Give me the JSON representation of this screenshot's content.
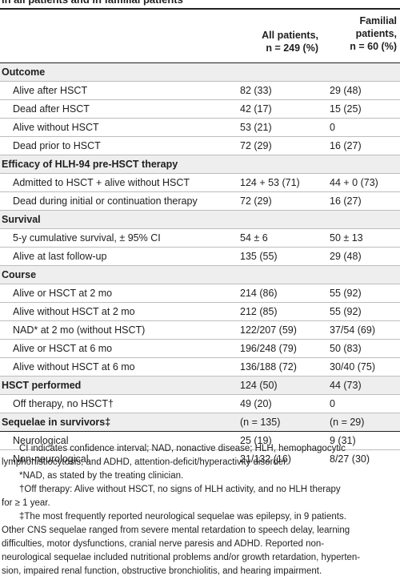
{
  "caption": "in all patients and in familial patients",
  "header": {
    "all_patients": [
      "All patients,",
      "n = 249 (%)"
    ],
    "familial_patients": [
      "Familial",
      "patients,",
      "n = 60 (%)"
    ]
  },
  "rows": [
    {
      "type": "section",
      "label": "Outcome",
      "v1": "",
      "v2": ""
    },
    {
      "type": "item",
      "label": "Alive after HSCT",
      "v1": "82 (33)",
      "v2": "29 (48)"
    },
    {
      "type": "item",
      "label": "Dead after HSCT",
      "v1": "42 (17)",
      "v2": "15 (25)"
    },
    {
      "type": "item",
      "label": "Alive without HSCT",
      "v1": "53 (21)",
      "v2": "0"
    },
    {
      "type": "item",
      "label": "Dead prior to HSCT",
      "v1": "72 (29)",
      "v2": "16 (27)"
    },
    {
      "type": "section",
      "label": "Efficacy of HLH-94 pre-HSCT therapy",
      "v1": "",
      "v2": ""
    },
    {
      "type": "item",
      "label": "Admitted to HSCT + alive without HSCT",
      "v1": "124 + 53 (71)",
      "v2": "44 + 0 (73)"
    },
    {
      "type": "item",
      "label": "Dead during initial or continuation therapy",
      "v1": "72 (29)",
      "v2": "16 (27)"
    },
    {
      "type": "section",
      "label": "Survival",
      "v1": "",
      "v2": ""
    },
    {
      "type": "item",
      "label": "5-y cumulative survival, ± 95% CI",
      "v1": "54 ± 6",
      "v2": "50 ± 13"
    },
    {
      "type": "item",
      "label": "Alive at last follow-up",
      "v1": "135 (55)",
      "v2": "29 (48)"
    },
    {
      "type": "section",
      "label": "Course",
      "v1": "",
      "v2": ""
    },
    {
      "type": "item",
      "label": "Alive or HSCT at 2 mo",
      "v1": "214 (86)",
      "v2": "55 (92)"
    },
    {
      "type": "item",
      "label": "Alive without HSCT at 2 mo",
      "v1": "212 (85)",
      "v2": "55 (92)"
    },
    {
      "type": "item",
      "label": "NAD* at 2 mo (without HSCT)",
      "v1": "122/207 (59)",
      "v2": "37/54 (69)"
    },
    {
      "type": "item",
      "label": "Alive or HSCT at 6 mo",
      "v1": "196/248 (79)",
      "v2": "50 (83)"
    },
    {
      "type": "item",
      "label": "Alive without HSCT at 6 mo",
      "v1": "136/188 (72)",
      "v2": "30/40 (75)"
    },
    {
      "type": "section",
      "label": "HSCT performed",
      "v1": "124 (50)",
      "v2": "44 (73)"
    },
    {
      "type": "item",
      "label": "Off therapy, no HSCT†",
      "v1": "49 (20)",
      "v2": "0"
    },
    {
      "type": "section",
      "label": "Sequelae in survivors‡",
      "v1": "(n = 135)",
      "v2": "(n = 29)"
    },
    {
      "type": "item",
      "label": "Neurological",
      "v1": "25 (19)",
      "v2": "9 (31)"
    },
    {
      "type": "item",
      "label": "Non-neurological",
      "v1": "21/132 (16)",
      "v2": "8/27 (30)"
    }
  ],
  "footnotes": [
    [
      "CI indicates confidence interval; NAD, nonactive disease; HLH, hemophagocytic",
      "lymphohistiocytosis; and ADHD, attention-deficit/hyperactivity disorder."
    ],
    [
      "*NAD, as stated by the treating clinician."
    ],
    [
      "†Off therapy: Alive without HSCT, no signs of HLH activity, and no HLH therapy",
      "for ≥ 1 year."
    ],
    [
      "‡The most frequently reported neurological sequelae was epilepsy, in 9 patients.",
      "Other CNS sequelae ranged from severe mental retardation to speech delay, learning",
      "difficulties, motor dysfunctions, cranial nerve paresis and ADHD. Reported non-",
      "neurological sequelae included nutritional problems and/or growth retardation, hyperten-",
      "sion, impaired renal function, obstructive bronchiolitis, and hearing impairment."
    ]
  ]
}
